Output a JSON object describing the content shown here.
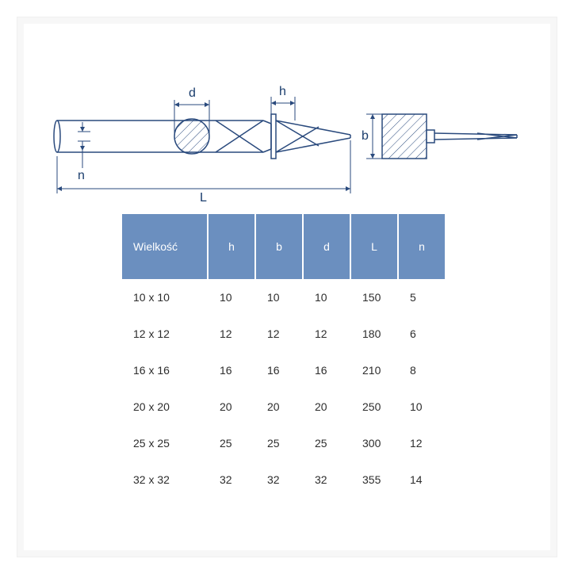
{
  "diagram": {
    "stroke_color": "#2a4a7d",
    "stroke_width": 1.5,
    "hatch_color": "#2a4a7d",
    "labels": {
      "d": "d",
      "h": "h",
      "b": "b",
      "n": "n",
      "L": "L"
    }
  },
  "table": {
    "header_bg": "#6b8fbf",
    "header_fg": "#ffffff",
    "cell_fg": "#2d2d2d",
    "columns": [
      "Wielkość",
      "h",
      "b",
      "d",
      "L",
      "n"
    ],
    "rows": [
      {
        "size": "10 x 10",
        "h": "10",
        "b": "10",
        "d": "10",
        "L": "150",
        "n": "5"
      },
      {
        "size": "12 x 12",
        "h": "12",
        "b": "12",
        "d": "12",
        "L": "180",
        "n": "6"
      },
      {
        "size": "16 x 16",
        "h": "16",
        "b": "16",
        "d": "16",
        "L": "210",
        "n": "8"
      },
      {
        "size": "20 x 20",
        "h": "20",
        "b": "20",
        "d": "20",
        "L": "250",
        "n": "10"
      },
      {
        "size": "25 x 25",
        "h": "25",
        "b": "25",
        "d": "25",
        "L": "300",
        "n": "12"
      },
      {
        "size": "32 x 32",
        "h": "32",
        "b": "32",
        "d": "32",
        "L": "355",
        "n": "14"
      }
    ]
  }
}
